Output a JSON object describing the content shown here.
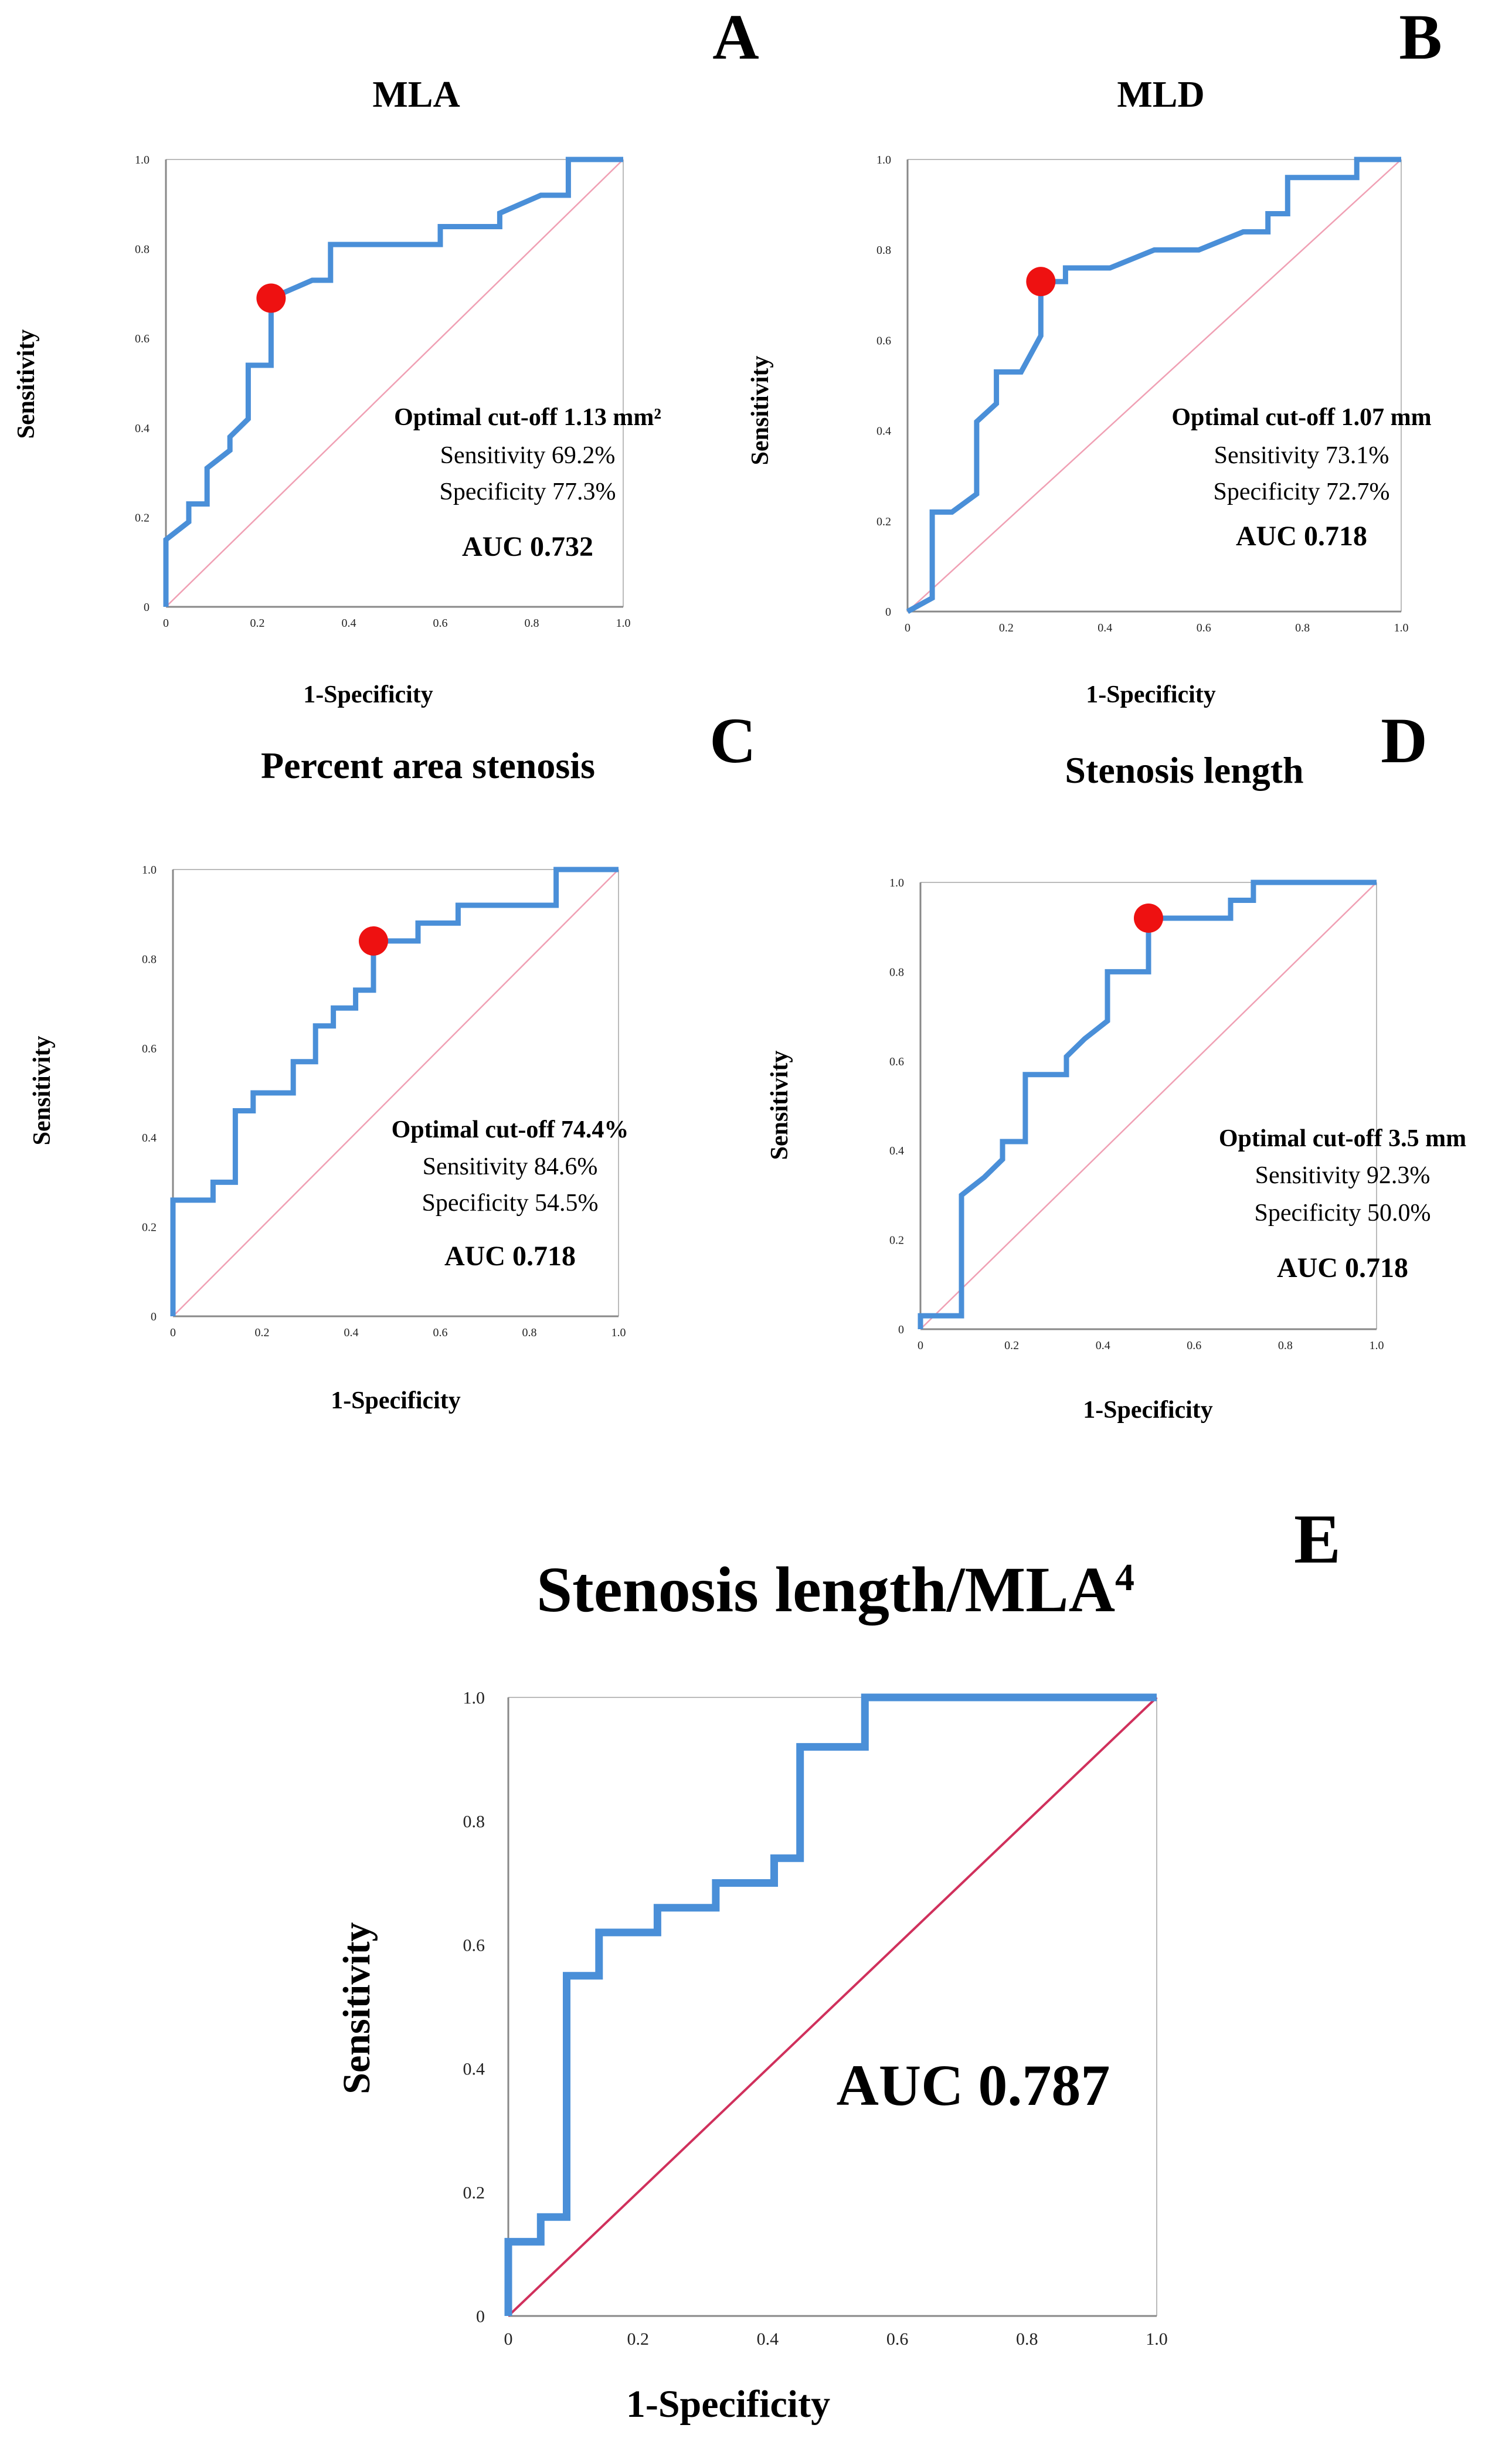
{
  "colors": {
    "roc_line": "#4a8fd8",
    "diagonal_small": "#f0a0b4",
    "diagonal_large": "#d0305c",
    "cutoff_point": "#ee1111",
    "axis": "#888888",
    "frame": "#bbbbbb"
  },
  "chart_data": [
    {
      "id": "A",
      "type": "line",
      "panel_letter": "A",
      "title": "MLA",
      "xlabel": "1-Specificity",
      "ylabel": "Sensitivity",
      "xlim": [
        0,
        1
      ],
      "ylim": [
        0,
        1
      ],
      "x_ticks": [
        "0",
        "0.2",
        "0.4",
        "0.6",
        "0.8",
        "1.0"
      ],
      "y_ticks": [
        "0",
        "0.2",
        "0.4",
        "0.6",
        "0.8",
        "1.0"
      ],
      "series": [
        {
          "name": "ROC",
          "x": [
            0,
            0,
            0.05,
            0.05,
            0.09,
            0.09,
            0.14,
            0.14,
            0.18,
            0.18,
            0.23,
            0.23,
            0.32,
            0.32,
            0.36,
            0.36,
            0.6,
            0.6,
            0.73,
            0.73,
            0.82,
            0.82,
            0.88,
            0.88,
            1.0
          ],
          "y": [
            0,
            0.15,
            0.19,
            0.23,
            0.23,
            0.31,
            0.35,
            0.38,
            0.42,
            0.54,
            0.54,
            0.69,
            0.73,
            0.73,
            0.73,
            0.81,
            0.81,
            0.85,
            0.85,
            0.88,
            0.92,
            0.92,
            0.92,
            1.0,
            1.0
          ]
        }
      ],
      "cutoff_point": {
        "x": 0.23,
        "y": 0.69
      },
      "annotations": {
        "cutoff": "Optimal cut-off 1.13 mm²",
        "sensitivity": "Sensitivity  69.2%",
        "specificity": "Specificity  77.3%",
        "auc": "AUC 0.732"
      }
    },
    {
      "id": "B",
      "type": "line",
      "panel_letter": "B",
      "title": "MLD",
      "xlabel": "1-Specificity",
      "ylabel": "Sensitivity",
      "xlim": [
        0,
        1
      ],
      "ylim": [
        0,
        1
      ],
      "x_ticks": [
        "0",
        "0.2",
        "0.4",
        "0.6",
        "0.8",
        "1.0"
      ],
      "y_ticks": [
        "0",
        "0.2",
        "0.4",
        "0.6",
        "0.8",
        "1.0"
      ],
      "series": [
        {
          "name": "ROC",
          "x": [
            0,
            0.05,
            0.05,
            0.09,
            0.14,
            0.14,
            0.18,
            0.18,
            0.23,
            0.27,
            0.27,
            0.32,
            0.32,
            0.41,
            0.5,
            0.59,
            0.68,
            0.73,
            0.73,
            0.77,
            0.77,
            0.91,
            0.91,
            1.0
          ],
          "y": [
            0,
            0.03,
            0.22,
            0.22,
            0.26,
            0.42,
            0.46,
            0.53,
            0.53,
            0.61,
            0.73,
            0.73,
            0.76,
            0.76,
            0.8,
            0.8,
            0.84,
            0.84,
            0.88,
            0.88,
            0.96,
            0.96,
            1.0,
            1.0
          ]
        }
      ],
      "cutoff_point": {
        "x": 0.27,
        "y": 0.73
      },
      "annotations": {
        "cutoff": "Optimal cut-off 1.07 mm",
        "sensitivity": "Sensitivity  73.1%",
        "specificity": "Specificity  72.7%",
        "auc": "AUC 0.718"
      }
    },
    {
      "id": "C",
      "type": "line",
      "panel_letter": "C",
      "title": "Percent area stenosis",
      "xlabel": "1-Specificity",
      "ylabel": "Sensitivity",
      "xlim": [
        0,
        1
      ],
      "ylim": [
        0,
        1
      ],
      "x_ticks": [
        "0",
        "0.2",
        "0.4",
        "0.6",
        "0.8",
        "1.0"
      ],
      "y_ticks": [
        "0",
        "0.2",
        "0.4",
        "0.6",
        "0.8",
        "1.0"
      ],
      "series": [
        {
          "name": "ROC",
          "x": [
            0,
            0,
            0.09,
            0.09,
            0.14,
            0.14,
            0.18,
            0.18,
            0.27,
            0.27,
            0.32,
            0.32,
            0.36,
            0.36,
            0.41,
            0.41,
            0.45,
            0.45,
            0.55,
            0.55,
            0.64,
            0.64,
            0.86,
            0.86,
            1.0
          ],
          "y": [
            0,
            0.26,
            0.26,
            0.3,
            0.3,
            0.46,
            0.46,
            0.5,
            0.5,
            0.57,
            0.57,
            0.65,
            0.65,
            0.69,
            0.69,
            0.73,
            0.73,
            0.84,
            0.84,
            0.88,
            0.88,
            0.92,
            0.92,
            1.0,
            1.0
          ]
        }
      ],
      "cutoff_point": {
        "x": 0.45,
        "y": 0.84
      },
      "annotations": {
        "cutoff": "Optimal cut-off 74.4%",
        "sensitivity": "Sensitivity  84.6%",
        "specificity": "Specificity  54.5%",
        "auc": "AUC 0.718"
      }
    },
    {
      "id": "D",
      "type": "line",
      "panel_letter": "D",
      "title": "Stenosis length",
      "xlabel": "1-Specificity",
      "ylabel": "Sensitivity",
      "xlim": [
        0,
        1
      ],
      "ylim": [
        0,
        1
      ],
      "x_ticks": [
        "0",
        "0.2",
        "0.4",
        "0.6",
        "0.8",
        "1.0"
      ],
      "y_ticks": [
        "0",
        "0.2",
        "0.4",
        "0.6",
        "0.8",
        "1.0"
      ],
      "series": [
        {
          "name": "ROC",
          "x": [
            0,
            0,
            0.09,
            0.09,
            0.14,
            0.18,
            0.18,
            0.23,
            0.23,
            0.32,
            0.32,
            0.36,
            0.41,
            0.41,
            0.5,
            0.5,
            0.68,
            0.68,
            0.73,
            0.73,
            1.0
          ],
          "y": [
            0,
            0.03,
            0.03,
            0.3,
            0.34,
            0.38,
            0.42,
            0.42,
            0.57,
            0.57,
            0.61,
            0.65,
            0.69,
            0.8,
            0.8,
            0.92,
            0.92,
            0.96,
            0.96,
            1.0,
            1.0
          ]
        }
      ],
      "cutoff_point": {
        "x": 0.5,
        "y": 0.92
      },
      "annotations": {
        "cutoff": "Optimal cut-off 3.5 mm",
        "sensitivity": "Sensitivity  92.3%",
        "specificity": "Specificity  50.0%",
        "auc": "AUC 0.718"
      }
    },
    {
      "id": "E",
      "type": "line",
      "panel_letter": "E",
      "title": "Stenosis length/MLA",
      "title_superscript": "4",
      "xlabel": "1-Specificity",
      "ylabel": "Sensitivity",
      "xlim": [
        0,
        1
      ],
      "ylim": [
        0,
        1
      ],
      "x_ticks": [
        "0",
        "0.2",
        "0.4",
        "0.6",
        "0.8",
        "1.0"
      ],
      "y_ticks": [
        "0",
        "0.2",
        "0.4",
        "0.6",
        "0.8",
        "1.0"
      ],
      "series": [
        {
          "name": "ROC",
          "x": [
            0,
            0,
            0.05,
            0.05,
            0.09,
            0.09,
            0.14,
            0.14,
            0.23,
            0.23,
            0.32,
            0.32,
            0.41,
            0.41,
            0.45,
            0.45,
            0.55,
            0.55,
            1.0
          ],
          "y": [
            0,
            0.12,
            0.12,
            0.16,
            0.16,
            0.55,
            0.55,
            0.62,
            0.62,
            0.66,
            0.66,
            0.7,
            0.7,
            0.74,
            0.74,
            0.92,
            0.92,
            1.0,
            1.0
          ]
        }
      ],
      "annotations": {
        "auc": "AUC 0.787"
      }
    }
  ]
}
